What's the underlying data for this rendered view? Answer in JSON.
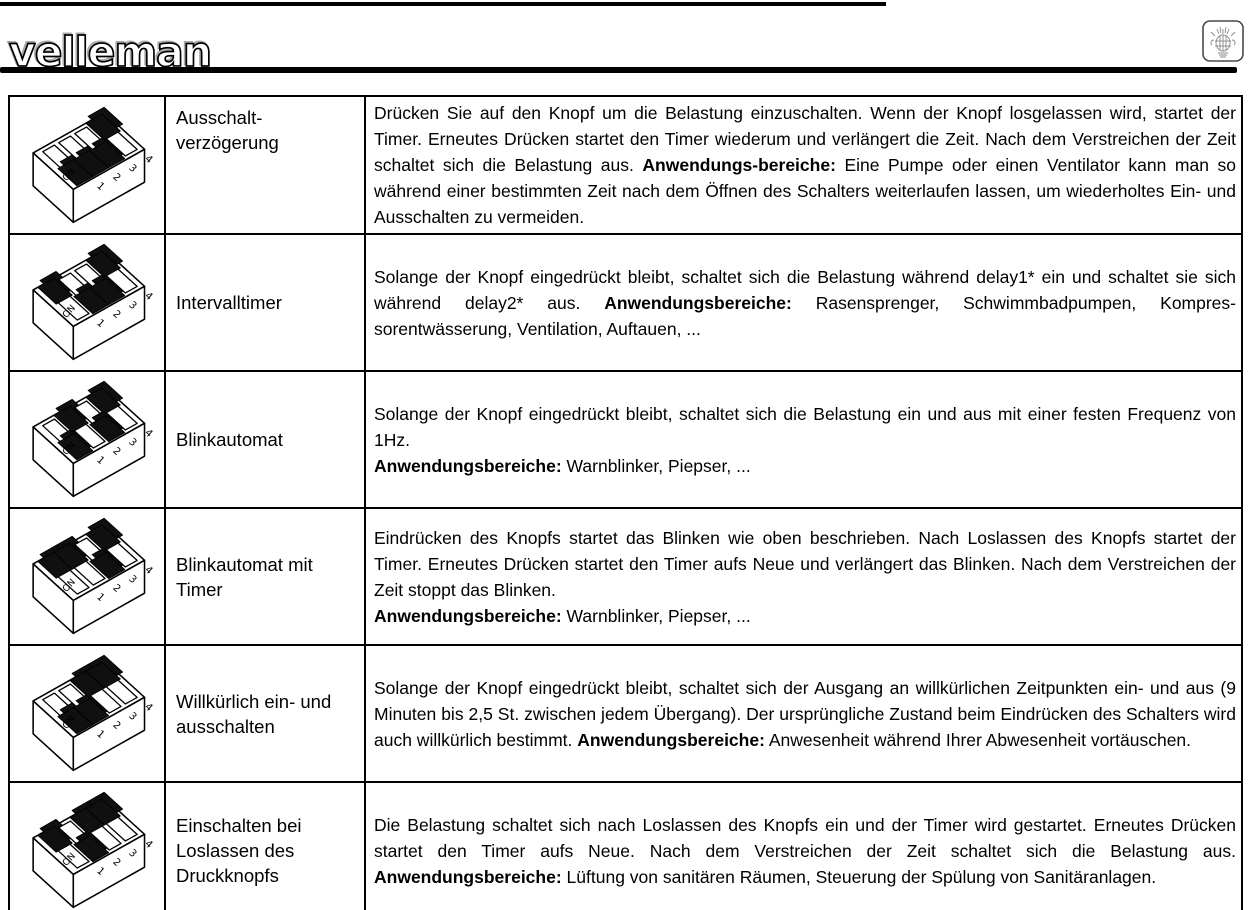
{
  "header": {
    "brand_logo_text": "velleman",
    "emblem_icon": "velleman-crest-icon"
  },
  "colors": {
    "ink": "#000000",
    "paper": "#ffffff",
    "crest_gray": "#8a8a8a"
  },
  "table": {
    "rows": [
      {
        "dip": {
          "on_label": "ON",
          "pin_labels": [
            "1",
            "2",
            "3",
            "4"
          ],
          "switches": [
            false,
            false,
            false,
            true
          ]
        },
        "mode_name": "Ausschalt-\nverzögerung",
        "description": {
          "pre": "Drücken Sie auf den Knopf um die Belastung einzuschalten. Wenn der Knopf losgelassen wird, startet der Timer. Erneutes Drücken startet den Timer wiederum und verlängert die Zeit. Nach dem Verstreichen der Zeit schaltet sich die Belastung aus. ",
          "bold": "Anwendungs-bereiche:",
          "post": " Eine Pumpe oder einen Ventilator kann man so während einer bestimmten Zeit nach dem Öffnen des Schalters weiterlaufen lassen, um wiederholtes Ein- und Ausschalten zu vermeiden."
        }
      },
      {
        "dip": {
          "on_label": "ON",
          "pin_labels": [
            "1",
            "2",
            "3",
            "4"
          ],
          "switches": [
            true,
            false,
            false,
            true
          ]
        },
        "mode_name": "Intervalltimer",
        "description": {
          "pre": "Solange der Knopf eingedrückt bleibt, schaltet sich die Belastung während delay1* ein und schaltet sie sich während delay2* aus. ",
          "bold": "Anwendungsbereiche:",
          "post": " Rasensprenger, Schwimmbadpumpen, Kompres-sorentwässerung, Ventilation, Auftauen, ..."
        }
      },
      {
        "dip": {
          "on_label": "ON",
          "pin_labels": [
            "1",
            "2",
            "3",
            "4"
          ],
          "switches": [
            false,
            true,
            false,
            true
          ]
        },
        "mode_name": "Blinkautomat",
        "description": {
          "pre": "Solange der Knopf eingedrückt bleibt, schaltet sich die Belastung ein und aus mit einer festen Frequenz von 1Hz.",
          "bold": "Anwendungsbereiche:",
          "post": " Warnblinker, Piepser, ..."
        }
      },
      {
        "dip": {
          "on_label": "ON",
          "pin_labels": [
            "1",
            "2",
            "3",
            "4"
          ],
          "switches": [
            true,
            true,
            false,
            true
          ]
        },
        "mode_name": "Blinkautomat mit\nTimer",
        "description": {
          "pre": "Eindrücken des Knopfs startet das Blinken wie oben beschrieben.  Nach Loslassen des Knopfs startet der Timer. Erneutes Drücken startet den Timer aufs Neue und verlängert das Blinken.  Nach dem Verstreichen der Zeit stoppt das Blinken.",
          "bold": "Anwendungsbereiche:",
          "post": " Warnblinker, Piepser, ..."
        }
      },
      {
        "dip": {
          "on_label": "ON",
          "pin_labels": [
            "1",
            "2",
            "3",
            "4"
          ],
          "switches": [
            false,
            false,
            true,
            true
          ]
        },
        "mode_name": "Willkürlich ein- und\nausschalten",
        "description": {
          "pre": "Solange der Knopf eingedrückt bleibt, schaltet sich der Ausgang an willkürlichen Zeitpunkten ein- und aus (9 Minuten bis 2,5 St. zwischen jedem Übergang).  Der ursprüngliche Zustand beim Eindrücken des Schalters wird auch willkürlich bestimmt. ",
          "bold": "Anwendungsbereiche:",
          "post": " Anwesenheit während Ihrer Abwesenheit vortäuschen."
        }
      },
      {
        "dip": {
          "on_label": "ON",
          "pin_labels": [
            "1",
            "2",
            "3",
            "4"
          ],
          "switches": [
            true,
            false,
            true,
            true
          ]
        },
        "mode_name": "Einschalten bei\nLoslassen des\nDruckknopfs",
        "description": {
          "pre": "Die Belastung schaltet sich nach Loslassen des Knopfs ein und der Timer wird gestartet. Erneutes Drücken startet den Timer aufs Neue.  Nach dem Verstreichen der Zeit schaltet sich die Belastung aus. ",
          "bold": "Anwendungsbereiche:",
          "post": " Lüftung von sanitären Räumen, Steuerung der Spülung von Sanitäranlagen."
        }
      }
    ]
  }
}
